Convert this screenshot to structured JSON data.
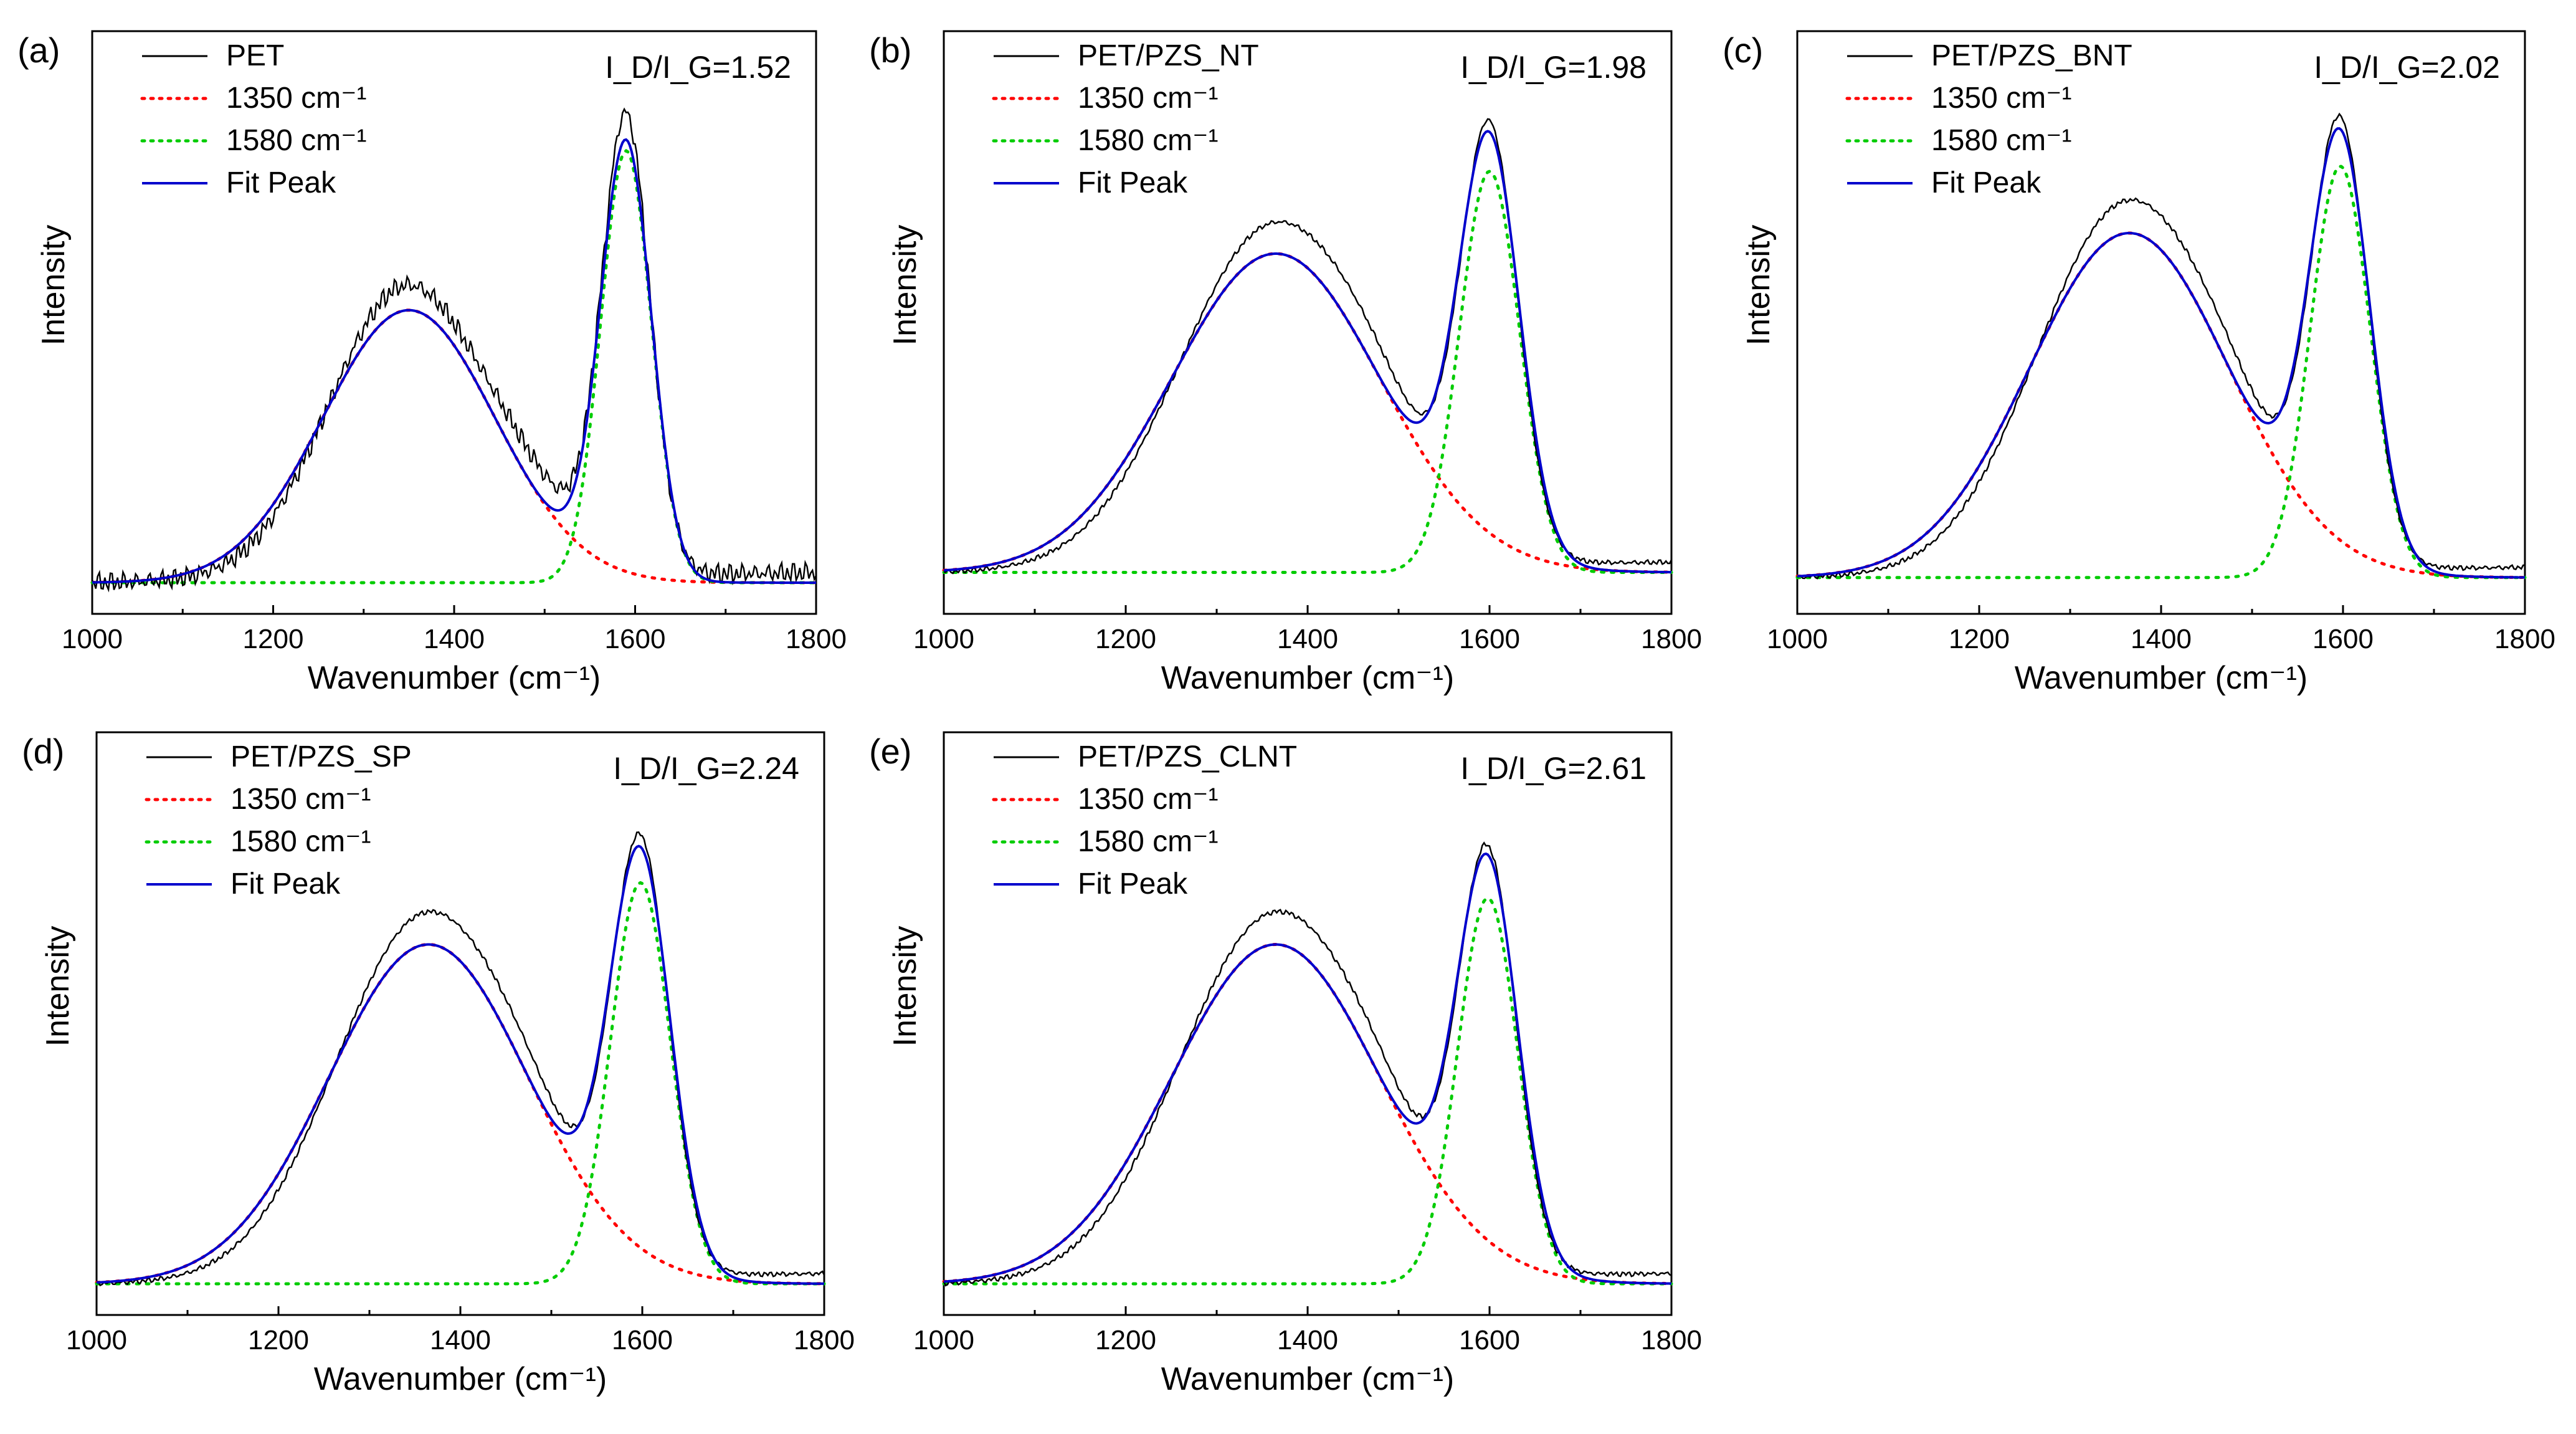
{
  "chart_data": [
    {
      "panel": "(a)",
      "type": "line",
      "sample": "PET",
      "ratio_label": "I_D/I_G=1.52",
      "xlabel": "Wavenumber (cm⁻¹)",
      "ylabel": "Intensity",
      "xlim": [
        1000,
        1800
      ],
      "xticks": [
        1000,
        1200,
        1400,
        1600,
        1800
      ],
      "legend": [
        "PET",
        "1350 cm⁻¹",
        "1580 cm⁻¹",
        "Fit Peak"
      ],
      "fit": {
        "baseline": 0.0,
        "d_center": 1350,
        "d_amp": 0.53,
        "d_width": 95,
        "g_center": 1590,
        "g_amp": 0.84,
        "g_width": 28,
        "noise": 0.025,
        "bump": 1.0
      }
    },
    {
      "panel": "(b)",
      "type": "line",
      "sample": "PET/PZS_NT",
      "ratio_label": "I_D/I_G=1.98",
      "xlabel": "Wavenumber (cm⁻¹)",
      "ylabel": "Intensity",
      "xlim": [
        1000,
        1800
      ],
      "xticks": [
        1000,
        1200,
        1400,
        1600,
        1800
      ],
      "legend": [
        "PET/PZS_NT",
        "1350 cm⁻¹",
        "1580 cm⁻¹",
        "Fit Peak"
      ],
      "fit": {
        "baseline": 0.02,
        "d_center": 1365,
        "d_amp": 0.62,
        "d_width": 115,
        "g_center": 1600,
        "g_amp": 0.78,
        "g_width": 33,
        "noise": 0.006,
        "bump": 1.0
      }
    },
    {
      "panel": "(c)",
      "type": "line",
      "sample": "PET/PZS_BNT",
      "ratio_label": "I_D/I_G=2.02",
      "xlabel": "Wavenumber (cm⁻¹)",
      "ylabel": "Intensity",
      "xlim": [
        1000,
        1800
      ],
      "xticks": [
        1000,
        1200,
        1400,
        1600,
        1800
      ],
      "legend": [
        "PET/PZS_BNT",
        "1350 cm⁻¹",
        "1580 cm⁻¹",
        "Fit Peak"
      ],
      "fit": {
        "baseline": 0.01,
        "d_center": 1365,
        "d_amp": 0.67,
        "d_width": 110,
        "g_center": 1597,
        "g_amp": 0.8,
        "g_width": 33,
        "noise": 0.006,
        "bump": 1.0
      }
    },
    {
      "panel": "(d)",
      "type": "line",
      "sample": "PET/PZS_SP",
      "ratio_label": "I_D/I_G=2.24",
      "xlabel": "Wavenumber (cm⁻¹)",
      "ylabel": "Intensity",
      "xlim": [
        1000,
        1800
      ],
      "xticks": [
        1000,
        1200,
        1400,
        1600,
        1800
      ],
      "legend": [
        "PET/PZS_SP",
        "1350 cm⁻¹",
        "1580 cm⁻¹",
        "Fit Peak"
      ],
      "fit": {
        "baseline": 0.0,
        "d_center": 1365,
        "d_amp": 0.66,
        "d_width": 110,
        "g_center": 1598,
        "g_amp": 0.78,
        "g_width": 33,
        "noise": 0.006,
        "bump": 1.0
      }
    },
    {
      "panel": "(e)",
      "type": "line",
      "sample": "PET/PZS_CLNT",
      "ratio_label": "I_D/I_G=2.61",
      "xlabel": "Wavenumber (cm⁻¹)",
      "ylabel": "Intensity",
      "xlim": [
        1000,
        1800
      ],
      "xticks": [
        1000,
        1200,
        1400,
        1600,
        1800
      ],
      "legend": [
        "PET/PZS_CLNT",
        "1350 cm⁻¹",
        "1580 cm⁻¹",
        "Fit Peak"
      ],
      "fit": {
        "baseline": 0.0,
        "d_center": 1365,
        "d_amp": 0.66,
        "d_width": 115,
        "g_center": 1598,
        "g_amp": 0.75,
        "g_width": 33,
        "noise": 0.006,
        "bump": 1.0
      }
    }
  ],
  "colors": {
    "raw": "#000000",
    "d_band": "#ff0000",
    "g_band": "#00cc00",
    "fit": "#0000cc"
  }
}
